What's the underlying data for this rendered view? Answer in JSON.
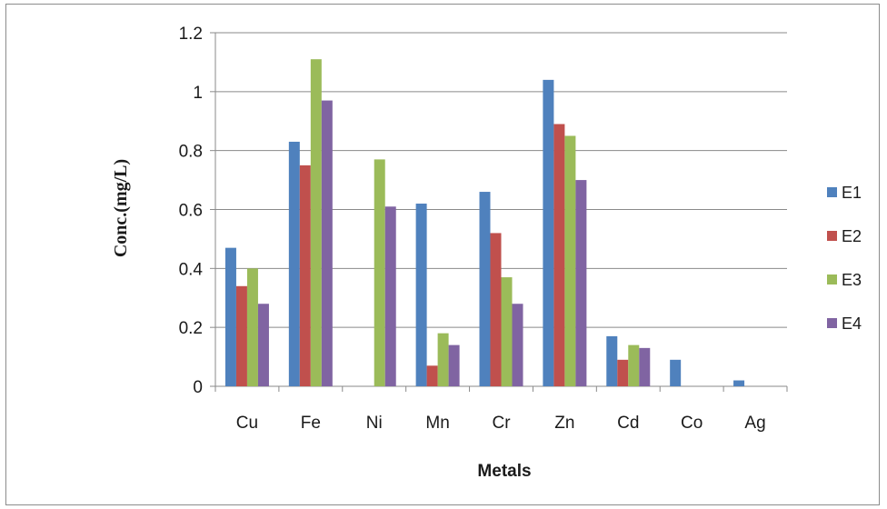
{
  "chart_data": {
    "type": "bar",
    "xlabel": "Metals",
    "ylabel": "Conc.(mg/L)",
    "categories": [
      "Cu",
      "Fe",
      "Ni",
      "Mn",
      "Cr",
      "Zn",
      "Cd",
      "Co",
      "Ag"
    ],
    "y_ticks": [
      "0",
      "0.2",
      "0.4",
      "0.6",
      "0.8",
      "1",
      "1.2"
    ],
    "ylim": [
      0,
      1.2
    ],
    "grid": true,
    "legend_position": "right",
    "series": [
      {
        "name": "E1",
        "color": "#4f81bd",
        "values": [
          0.47,
          0.83,
          0,
          0.62,
          0.66,
          1.04,
          0.17,
          0.09,
          0.02
        ]
      },
      {
        "name": "E2",
        "color": "#c0504d",
        "values": [
          0.34,
          0.75,
          0,
          0.07,
          0.52,
          0.89,
          0.09,
          0,
          0
        ]
      },
      {
        "name": "E3",
        "color": "#9bbb59",
        "values": [
          0.4,
          1.11,
          0.77,
          0.18,
          0.37,
          0.85,
          0.14,
          0,
          0
        ]
      },
      {
        "name": "E4",
        "color": "#8064a2",
        "values": [
          0.28,
          0.97,
          0.61,
          0.14,
          0.28,
          0.7,
          0.13,
          0,
          0
        ]
      }
    ]
  }
}
